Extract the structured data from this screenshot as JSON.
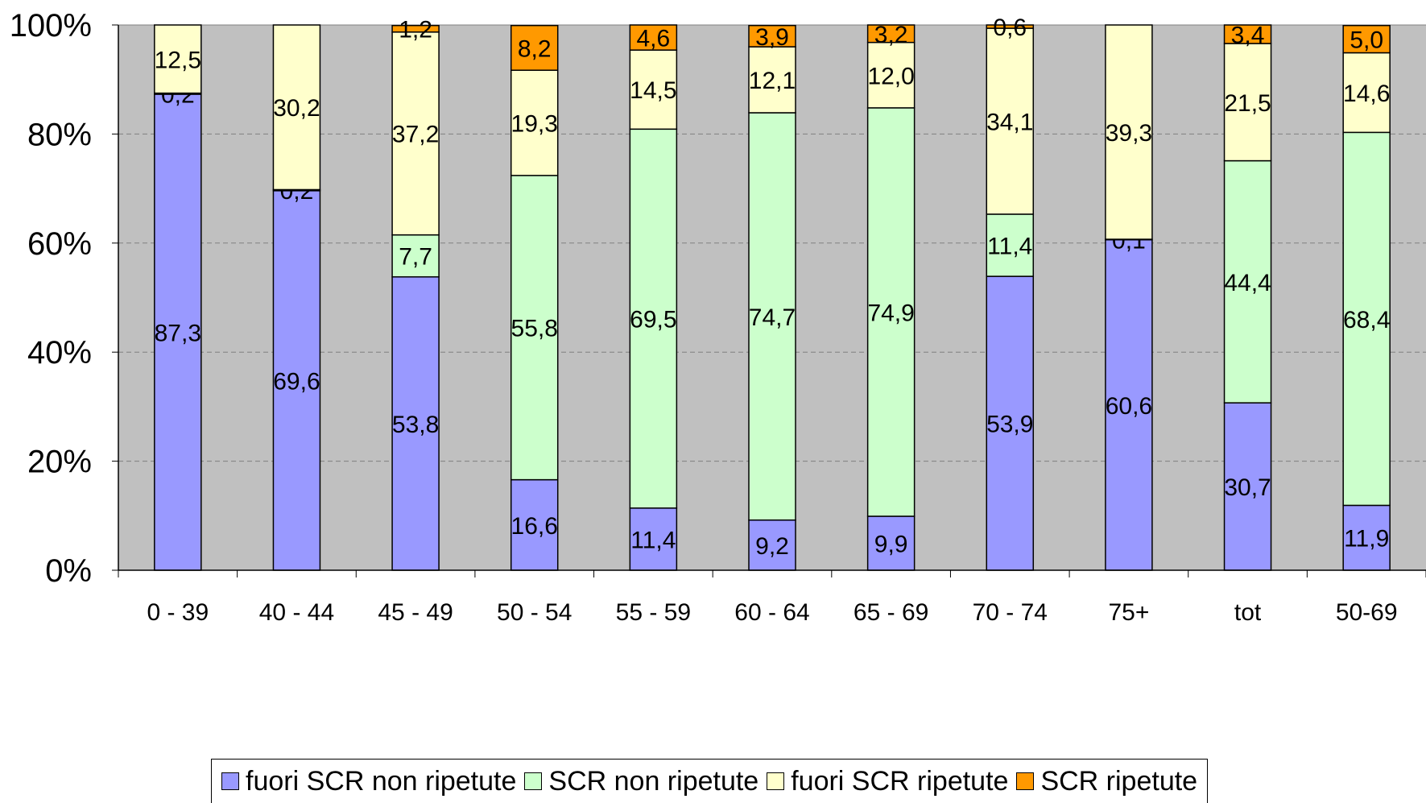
{
  "chart_data": {
    "type": "bar",
    "stacked": true,
    "percent": true,
    "title": "",
    "xlabel": "",
    "ylabel": "",
    "ylim": [
      0,
      100
    ],
    "yticks": [
      "0%",
      "20%",
      "40%",
      "60%",
      "80%",
      "100%"
    ],
    "grid": true,
    "legend_position": "bottom",
    "categories": [
      "0 - 39",
      "40 - 44",
      "45 - 49",
      "50 - 54",
      "55 - 59",
      "60 - 64",
      "65 - 69",
      "70 - 74",
      "75+",
      "tot",
      "50-69"
    ],
    "series": [
      {
        "name": "fuori SCR non ripetute",
        "color": "#9999ff",
        "values": [
          87.3,
          69.6,
          53.8,
          16.6,
          11.4,
          9.2,
          9.9,
          53.9,
          60.6,
          30.7,
          11.9
        ],
        "labels": [
          "87,3",
          "69,6",
          "53,8",
          "16,6",
          "11,4",
          "9,2",
          "9,9",
          "53,9",
          "60,6",
          "30,7",
          "11,9"
        ]
      },
      {
        "name": "SCR non ripetute",
        "color": "#ccffcc",
        "values": [
          0.2,
          0.2,
          7.7,
          55.8,
          69.5,
          74.7,
          74.9,
          11.4,
          0.1,
          44.4,
          68.4
        ],
        "labels": [
          "0,2",
          "0,2",
          "7,7",
          "55,8",
          "69,5",
          "74,7",
          "74,9",
          "11,4",
          "0,1",
          "44,4",
          "68,4"
        ]
      },
      {
        "name": "fuori SCR ripetute",
        "color": "#ffffcc",
        "values": [
          12.5,
          30.2,
          37.2,
          19.3,
          14.5,
          12.1,
          12.0,
          34.1,
          39.3,
          21.5,
          14.6
        ],
        "labels": [
          "12,5",
          "30,2",
          "37,2",
          "19,3",
          "14,5",
          "12,1",
          "12,0",
          "34,1",
          "39,3",
          "21,5",
          "14,6"
        ]
      },
      {
        "name": "SCR ripetute",
        "color": "#ff9900",
        "values": [
          0,
          0,
          1.2,
          8.2,
          4.6,
          3.9,
          3.2,
          0.6,
          0,
          3.4,
          5.0
        ],
        "labels": [
          "",
          "",
          "1,2",
          "8,2",
          "4,6",
          "3,9",
          "3,2",
          "0,6",
          "",
          "3,4",
          "5,0"
        ]
      }
    ],
    "plot_background": "#c0c0c0"
  }
}
